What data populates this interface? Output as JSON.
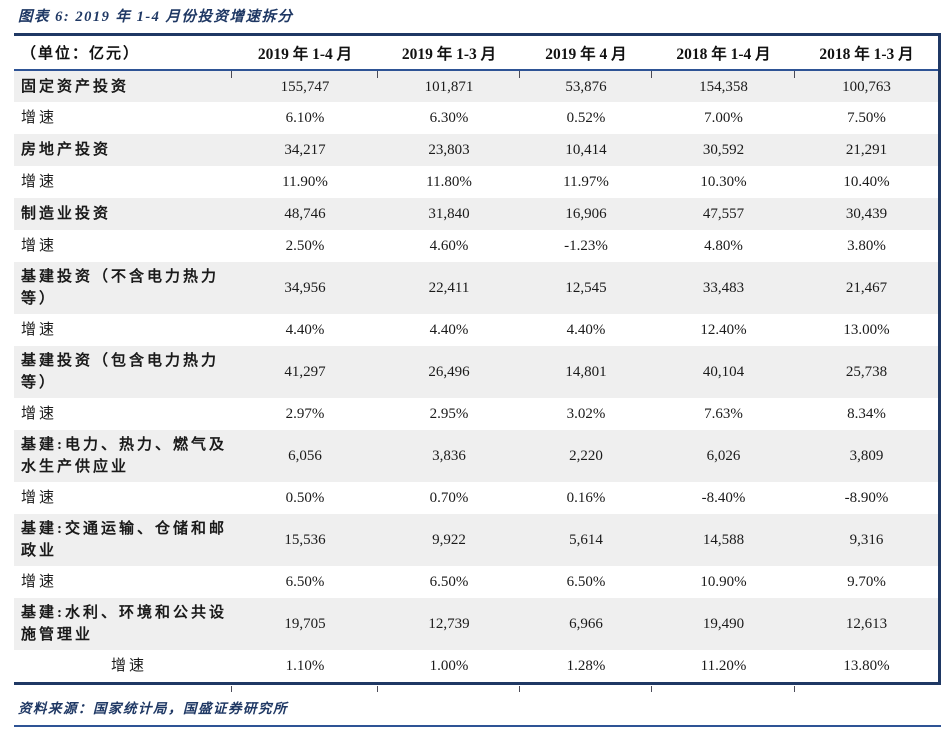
{
  "figure": {
    "title": "图表 6: 2019 年 1-4 月份投资增速拆分",
    "source": "资料来源：国家统计局，国盛证券研究所"
  },
  "colors": {
    "border_navy": "#1f3864",
    "rule_blue": "#2e5395",
    "stripe_gray": "#efefef",
    "text": "#1a1a1a"
  },
  "table": {
    "unit_header": "（单位：亿元）",
    "columns": [
      "2019 年 1-4 月",
      "2019 年 1-3 月",
      "2019 年 4 月",
      "2018 年 1-4 月",
      "2018 年 1-3 月"
    ],
    "rows": [
      {
        "label": "固定资产投资",
        "emphasis": true,
        "indent": false,
        "values": [
          "155,747",
          "101,871",
          "53,876",
          "154,358",
          "100,763"
        ]
      },
      {
        "label": "增速",
        "emphasis": false,
        "indent": false,
        "values": [
          "6.10%",
          "6.30%",
          "0.52%",
          "7.00%",
          "7.50%"
        ]
      },
      {
        "label": "房地产投资",
        "emphasis": true,
        "indent": false,
        "values": [
          "34,217",
          "23,803",
          "10,414",
          "30,592",
          "21,291"
        ]
      },
      {
        "label": "增速",
        "emphasis": false,
        "indent": false,
        "values": [
          "11.90%",
          "11.80%",
          "11.97%",
          "10.30%",
          "10.40%"
        ]
      },
      {
        "label": "制造业投资",
        "emphasis": true,
        "indent": false,
        "values": [
          "48,746",
          "31,840",
          "16,906",
          "47,557",
          "30,439"
        ]
      },
      {
        "label": "增速",
        "emphasis": false,
        "indent": false,
        "values": [
          "2.50%",
          "4.60%",
          "-1.23%",
          "4.80%",
          "3.80%"
        ]
      },
      {
        "label": "基建投资（不含电力热力等）",
        "emphasis": true,
        "indent": false,
        "values": [
          "34,956",
          "22,411",
          "12,545",
          "33,483",
          "21,467"
        ]
      },
      {
        "label": "增速",
        "emphasis": false,
        "indent": false,
        "values": [
          "4.40%",
          "4.40%",
          "4.40%",
          "12.40%",
          "13.00%"
        ]
      },
      {
        "label": "基建投资（包含电力热力等）",
        "emphasis": true,
        "indent": false,
        "values": [
          "41,297",
          "26,496",
          "14,801",
          "40,104",
          "25,738"
        ]
      },
      {
        "label": "增速",
        "emphasis": false,
        "indent": false,
        "values": [
          "2.97%",
          "2.95%",
          "3.02%",
          "7.63%",
          "8.34%"
        ]
      },
      {
        "label": "基建:电力、热力、燃气及水生产供应业",
        "emphasis": true,
        "indent": false,
        "values": [
          "6,056",
          "3,836",
          "2,220",
          "6,026",
          "3,809"
        ]
      },
      {
        "label": "增速",
        "emphasis": false,
        "indent": false,
        "values": [
          "0.50%",
          "0.70%",
          "0.16%",
          "-8.40%",
          "-8.90%"
        ]
      },
      {
        "label": "基建:交通运输、仓储和邮政业",
        "emphasis": true,
        "indent": false,
        "values": [
          "15,536",
          "9,922",
          "5,614",
          "14,588",
          "9,316"
        ]
      },
      {
        "label": "增速",
        "emphasis": false,
        "indent": false,
        "values": [
          "6.50%",
          "6.50%",
          "6.50%",
          "10.90%",
          "9.70%"
        ]
      },
      {
        "label": "基建:水利、环境和公共设施管理业",
        "emphasis": true,
        "indent": false,
        "values": [
          "19,705",
          "12,739",
          "6,966",
          "19,490",
          "12,613"
        ]
      },
      {
        "label": "增速",
        "emphasis": false,
        "indent": true,
        "values": [
          "1.10%",
          "1.00%",
          "1.28%",
          "11.20%",
          "13.80%"
        ]
      }
    ]
  }
}
